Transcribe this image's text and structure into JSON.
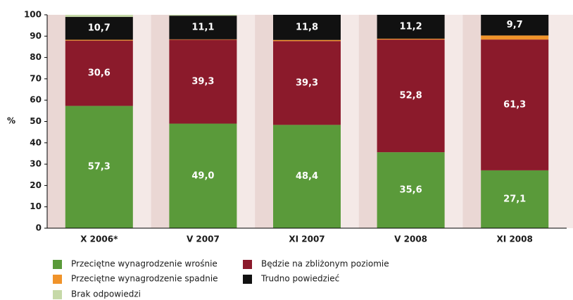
{
  "chart_data": {
    "type": "stacked_bar",
    "y_label": "%",
    "categories": [
      "X 2006*",
      "V 2007",
      "XI 2007",
      "V 2008",
      "XI 2008"
    ],
    "series": [
      {
        "name": "Przeciętne wynagrodzenie wrośnie",
        "color": "#5a9a3a",
        "values": [
          57.3,
          49.0,
          48.4,
          35.6,
          27.1
        ],
        "value_labels": [
          "57,3",
          "49,0",
          "48,4",
          "35,6",
          "27,1"
        ]
      },
      {
        "name": "Będzie na zbliżonym poziomie",
        "color": "#8b1a2b",
        "values": [
          30.6,
          39.3,
          39.3,
          52.8,
          61.3
        ],
        "value_labels": [
          "30,6",
          "39,3",
          "39,3",
          "52,8",
          "61,3"
        ]
      },
      {
        "name": "Przeciętne wynagrodzenie spadnie",
        "color": "#f0932a",
        "values": [
          0.4,
          0.2,
          0.5,
          0.4,
          1.9
        ]
      },
      {
        "name": "Trudno powiedzieć",
        "color": "#111111",
        "values": [
          10.7,
          11.1,
          11.8,
          11.2,
          9.7
        ],
        "value_labels": [
          "10,7",
          "11,1",
          "11,8",
          "11,2",
          "9,7"
        ]
      },
      {
        "name": "Brak odpowiedzi",
        "color": "#c6d9a8",
        "values": [
          1.0,
          0.4,
          0,
          0,
          0
        ]
      }
    ],
    "ylim": [
      0,
      100
    ],
    "yticks": [
      0,
      10,
      20,
      30,
      40,
      50,
      60,
      70,
      80,
      90,
      100
    ]
  }
}
